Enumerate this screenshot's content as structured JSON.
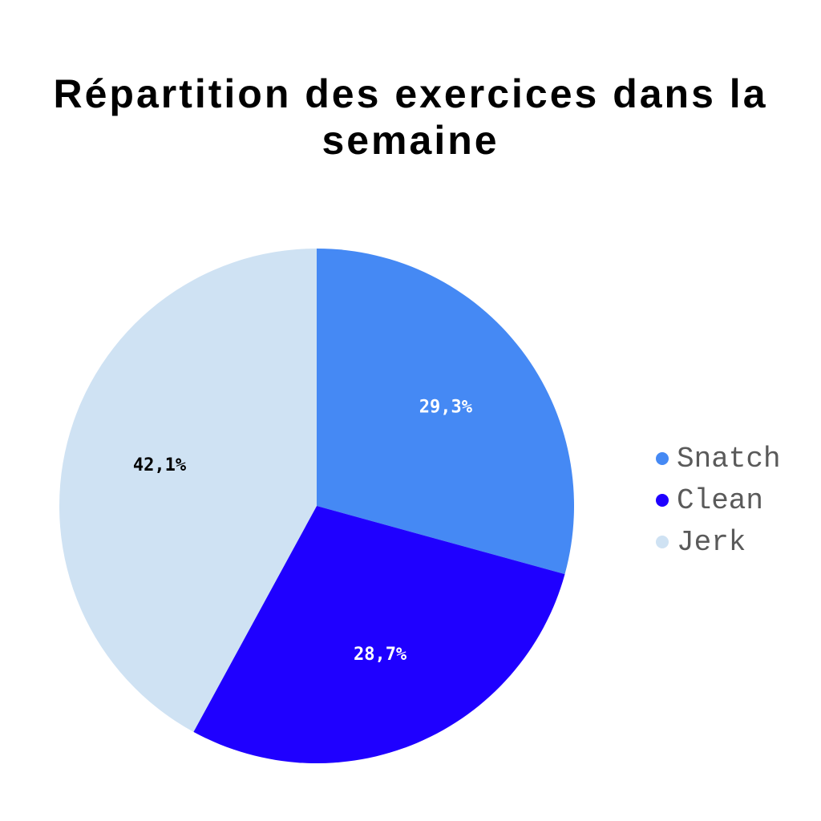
{
  "chart_data": {
    "type": "pie",
    "title": "Répartition des exercices dans la semaine",
    "categories": [
      "Snatch",
      "Clean",
      "Jerk"
    ],
    "values": [
      29.3,
      28.7,
      42.1
    ],
    "value_labels": [
      "29,3%",
      "28,7%",
      "42,1%"
    ],
    "colors": [
      "#4589f4",
      "#1f00ff",
      "#cfe2f3"
    ],
    "label_colors": [
      "#ffffff",
      "#ffffff",
      "#000000"
    ],
    "start": "top",
    "direction": "clockwise",
    "legend_position": "right"
  }
}
